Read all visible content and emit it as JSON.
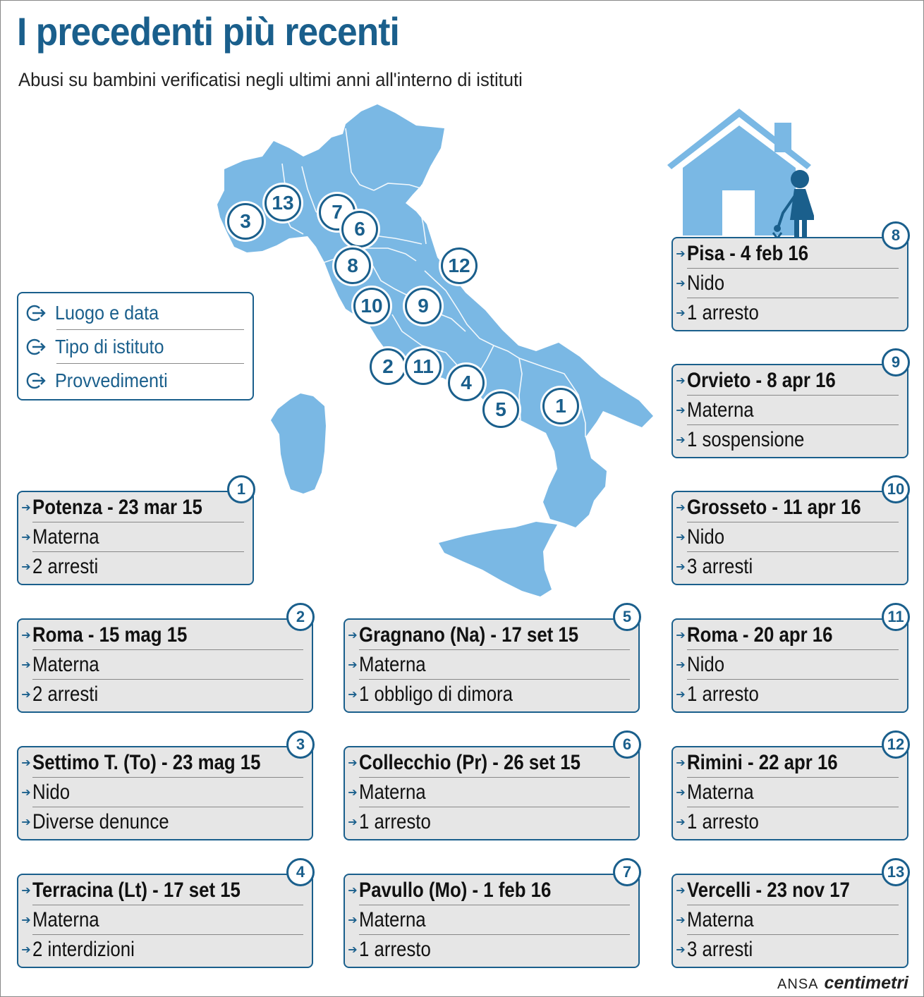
{
  "title": "I precedenti più recenti",
  "subtitle": "Abusi su bambini verificatisi negli ultimi anni all'interno di istituti",
  "colors": {
    "accent": "#1a5f8c",
    "map_fill": "#7ab8e4",
    "card_bg": "#e6e6e6"
  },
  "legend": [
    {
      "label": "Luogo e data",
      "icon": "arrow-circle-icon"
    },
    {
      "label": "Tipo di istituto",
      "icon": "arrow-circle-icon"
    },
    {
      "label": "Provvedimenti",
      "icon": "arrow-circle-icon"
    }
  ],
  "map_pins": [
    "1",
    "2",
    "3",
    "4",
    "5",
    "6",
    "7",
    "8",
    "9",
    "10",
    "11",
    "12",
    "13"
  ],
  "cases": [
    {
      "num": "1",
      "place": "Potenza - 23 mar 15",
      "type": "Materna",
      "measure": "2 arresti"
    },
    {
      "num": "2",
      "place": "Roma - 15 mag 15",
      "type": "Materna",
      "measure": "2 arresti"
    },
    {
      "num": "3",
      "place": "Settimo T. (To) - 23 mag 15",
      "type": "Nido",
      "measure": "Diverse denunce"
    },
    {
      "num": "4",
      "place": "Terracina (Lt) - 17 set 15",
      "type": "Materna",
      "measure": "2 interdizioni"
    },
    {
      "num": "5",
      "place": "Gragnano (Na) - 17 set 15",
      "type": "Materna",
      "measure": "1 obbligo di dimora"
    },
    {
      "num": "6",
      "place": "Collecchio (Pr) - 26 set 15",
      "type": "Materna",
      "measure": "1 arresto"
    },
    {
      "num": "7",
      "place": "Pavullo (Mo) - 1 feb 16",
      "type": "Materna",
      "measure": "1 arresto"
    },
    {
      "num": "8",
      "place": "Pisa - 4 feb 16",
      "type": "Nido",
      "measure": "1 arresto"
    },
    {
      "num": "9",
      "place": "Orvieto - 8 apr 16",
      "type": "Materna",
      "measure": "1 sospensione"
    },
    {
      "num": "10",
      "place": "Grosseto - 11 apr 16",
      "type": "Nido",
      "measure": "3 arresti"
    },
    {
      "num": "11",
      "place": "Roma - 20 apr 16",
      "type": "Nido",
      "measure": "1 arresto"
    },
    {
      "num": "12",
      "place": "Rimini - 22 apr 16",
      "type": "Materna",
      "measure": "1 arresto"
    },
    {
      "num": "13",
      "place": "Vercelli - 23 nov 17",
      "type": "Materna",
      "measure": "3 arresti"
    }
  ],
  "credit": {
    "agency": "ANSA",
    "brand": "centimetri"
  }
}
